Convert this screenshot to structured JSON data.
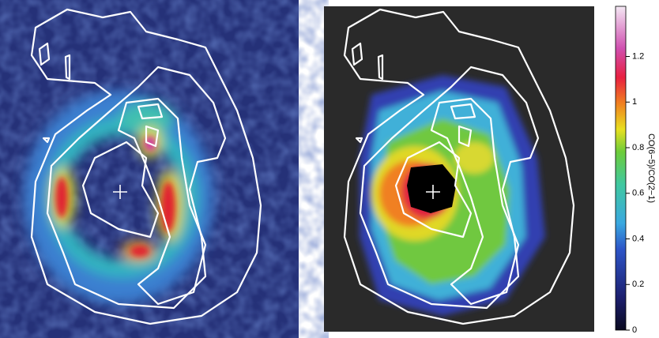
{
  "chart_data": {
    "type": "colorbar-figure",
    "colorbar": {
      "label": "CO(6−5)/CO(2−1)",
      "ylim": [
        0,
        1.42
      ],
      "yticks": [
        0,
        0.2,
        0.4,
        0.6,
        0.8,
        1,
        1.2
      ]
    }
  }
}
